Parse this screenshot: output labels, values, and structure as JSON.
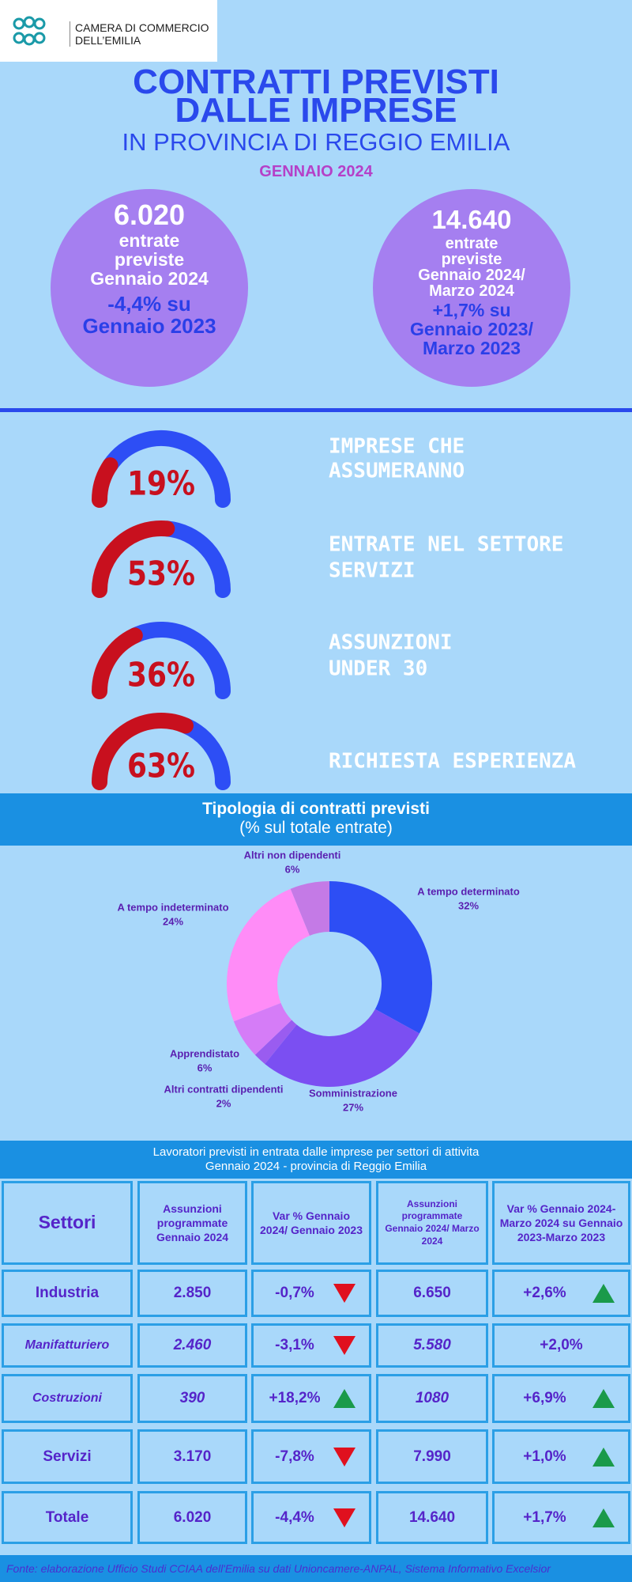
{
  "header": {
    "logo": [
      "CAMERA DI COMMERCIO",
      "DELL’EMILIA"
    ],
    "title": [
      "CONTRATTI PREVISTI",
      "DALLE IMPRESE"
    ],
    "subtitle": "IN PROVINCIA DI REGGIO EMILIA",
    "period": "GENNAIO 2024"
  },
  "kpis": [
    {
      "value": "6.020",
      "label": [
        "entrate",
        "previste",
        "Gennaio 2024"
      ],
      "change": [
        "-4,4% su",
        "Gennaio 2023"
      ]
    },
    {
      "value": "14.640",
      "label": [
        "entrate",
        "previste",
        "Gennaio 2024/",
        "Marzo 2024"
      ],
      "change": [
        "+1,7% su",
        "Gennaio 2023/",
        "Marzo 2023"
      ]
    }
  ],
  "chart_data": [
    {
      "type": "gauge",
      "title": [
        "IMPRESE CHE",
        "ASSUMERANNO"
      ],
      "values": [
        19
      ],
      "value_labels": [
        "19%"
      ],
      "ylim": [
        0,
        100
      ],
      "colors": [
        "#c8101e",
        "#2d4ef5"
      ]
    },
    {
      "type": "gauge",
      "title": [
        "ENTRATE NEL SETTORE",
        "SERVIZI"
      ],
      "values": [
        53
      ],
      "value_labels": [
        "53%"
      ],
      "ylim": [
        0,
        100
      ],
      "colors": [
        "#c8101e",
        "#2d4ef5"
      ]
    },
    {
      "type": "gauge",
      "title": [
        "ASSUNZIONI",
        "UNDER 30"
      ],
      "values": [
        36
      ],
      "value_labels": [
        "36%"
      ],
      "ylim": [
        0,
        100
      ],
      "colors": [
        "#c8101e",
        "#2d4ef5"
      ]
    },
    {
      "type": "gauge",
      "title": [
        "RICHIESTA ESPERIENZA"
      ],
      "values": [
        63
      ],
      "value_labels": [
        "63%"
      ],
      "ylim": [
        0,
        100
      ],
      "colors": [
        "#c8101e",
        "#2d4ef5"
      ]
    },
    {
      "type": "donut",
      "title": "Tipologia di contratti previsti",
      "subtitle": "(% sul totale entrate)",
      "categories": [
        "A tempo determinato",
        "Somministrazione",
        "Altri contratti dipendenti",
        "Apprendistato",
        "A tempo indeterminato",
        "Altri non dipendenti"
      ],
      "values": [
        32,
        27,
        2,
        6,
        24,
        6
      ],
      "value_labels": [
        "32%",
        "27%",
        "2%",
        "6%",
        "24%",
        "6%"
      ],
      "colors": [
        "#2d4ef5",
        "#7b4ff2",
        "#9a5cf0",
        "#d57cf7",
        "#ff8cf7",
        "#c47ae6"
      ]
    }
  ],
  "table": {
    "title": [
      "Lavoratori previsti in entrata dalle imprese per settori di attivita",
      "Gennaio 2024 - provincia di Reggio Emilia"
    ],
    "columns": [
      "Settori",
      "Assunzioni programmate Gennaio 2024",
      "Var % Gennaio 2024/ Gennaio 2023",
      "Assunzioni programmate Gennaio 2024/ Marzo 2024",
      "Var % Gennaio 2024-Marzo 2024 su Gennaio 2023-Marzo 2023"
    ],
    "rows": [
      [
        "Industria",
        "2.850",
        "-0,7%",
        "6.650",
        "+2,6%"
      ],
      [
        "Manifatturiero",
        "2.460",
        "-3,1%",
        "5.580",
        "+2,0%"
      ],
      [
        "Costruzioni",
        "390",
        "+18,2%",
        "1080",
        "+6,9%"
      ],
      [
        "Servizi",
        "3.170",
        "-7,8%",
        "7.990",
        "+1,0%"
      ],
      [
        "Totale",
        "6.020",
        "-4,4%",
        "14.640",
        "+1,7%"
      ]
    ]
  },
  "footer": "Fonte: elaborazione Ufficio Studi CCIAA dell'Emilia su dati Unioncamere-ANPAL, Sistema Informativo Excelsior"
}
